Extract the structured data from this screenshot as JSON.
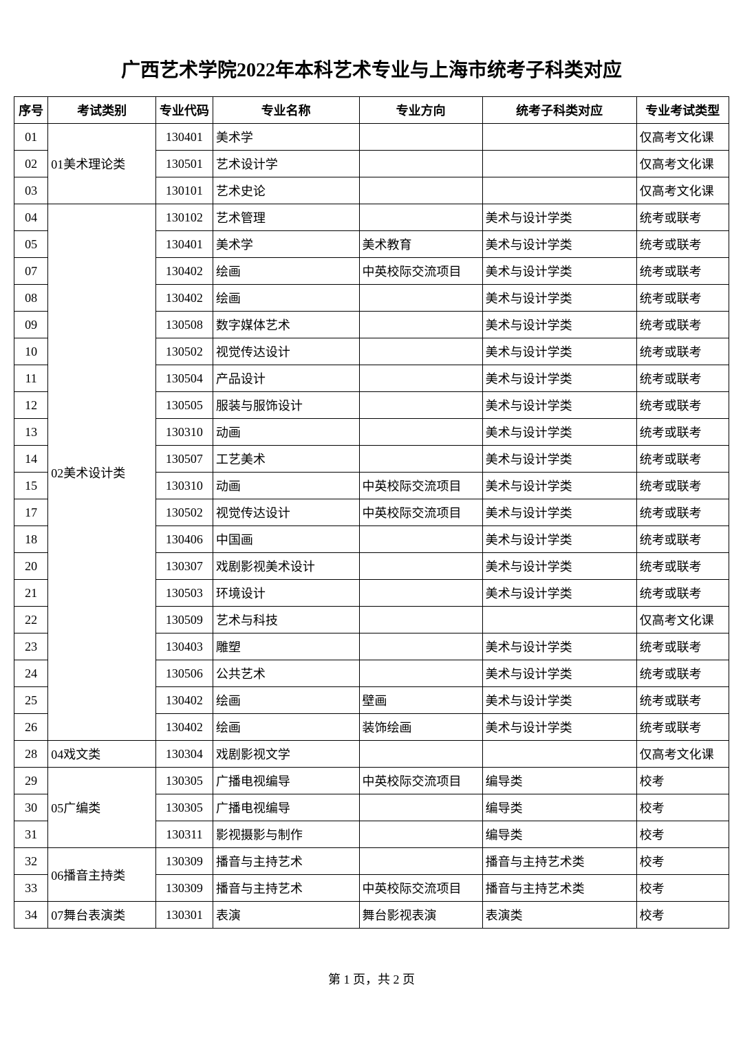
{
  "title": "广西艺术学院2022年本科艺术专业与上海市统考子科类对应",
  "footer": "第 1 页，共 2 页",
  "headers": {
    "seq": "序号",
    "category": "考试类别",
    "code": "专业代码",
    "name": "专业名称",
    "direction": "专业方向",
    "exam": "统考子科类对应",
    "type": "专业考试类型"
  },
  "groups": [
    {
      "category": "01美术理论类",
      "rows": [
        {
          "seq": "01",
          "code": "130401",
          "name": "美术学",
          "direction": "",
          "exam": "",
          "type": "仅高考文化课"
        },
        {
          "seq": "02",
          "code": "130501",
          "name": "艺术设计学",
          "direction": "",
          "exam": "",
          "type": "仅高考文化课"
        },
        {
          "seq": "03",
          "code": "130101",
          "name": "艺术史论",
          "direction": "",
          "exam": "",
          "type": "仅高考文化课"
        }
      ]
    },
    {
      "category": "02美术设计类",
      "rows": [
        {
          "seq": "04",
          "code": "130102",
          "name": "艺术管理",
          "direction": "",
          "exam": "美术与设计学类",
          "type": "统考或联考"
        },
        {
          "seq": "05",
          "code": "130401",
          "name": "美术学",
          "direction": "美术教育",
          "exam": "美术与设计学类",
          "type": "统考或联考"
        },
        {
          "seq": "07",
          "code": "130402",
          "name": "绘画",
          "direction": "中英校际交流项目",
          "exam": "美术与设计学类",
          "type": "统考或联考"
        },
        {
          "seq": "08",
          "code": "130402",
          "name": "绘画",
          "direction": "",
          "exam": "美术与设计学类",
          "type": "统考或联考"
        },
        {
          "seq": "09",
          "code": "130508",
          "name": "数字媒体艺术",
          "direction": "",
          "exam": "美术与设计学类",
          "type": "统考或联考"
        },
        {
          "seq": "10",
          "code": "130502",
          "name": "视觉传达设计",
          "direction": "",
          "exam": "美术与设计学类",
          "type": "统考或联考"
        },
        {
          "seq": "11",
          "code": "130504",
          "name": "产品设计",
          "direction": "",
          "exam": "美术与设计学类",
          "type": "统考或联考"
        },
        {
          "seq": "12",
          "code": "130505",
          "name": "服装与服饰设计",
          "direction": "",
          "exam": "美术与设计学类",
          "type": "统考或联考"
        },
        {
          "seq": "13",
          "code": "130310",
          "name": "动画",
          "direction": "",
          "exam": "美术与设计学类",
          "type": "统考或联考"
        },
        {
          "seq": "14",
          "code": "130507",
          "name": "工艺美术",
          "direction": "",
          "exam": "美术与设计学类",
          "type": "统考或联考"
        },
        {
          "seq": "15",
          "code": "130310",
          "name": "动画",
          "direction": "中英校际交流项目",
          "exam": "美术与设计学类",
          "type": "统考或联考"
        },
        {
          "seq": "17",
          "code": "130502",
          "name": "视觉传达设计",
          "direction": "中英校际交流项目",
          "exam": "美术与设计学类",
          "type": "统考或联考"
        },
        {
          "seq": "18",
          "code": "130406",
          "name": "中国画",
          "direction": "",
          "exam": "美术与设计学类",
          "type": "统考或联考"
        },
        {
          "seq": "20",
          "code": "130307",
          "name": "戏剧影视美术设计",
          "direction": "",
          "exam": "美术与设计学类",
          "type": "统考或联考"
        },
        {
          "seq": "21",
          "code": "130503",
          "name": "环境设计",
          "direction": "",
          "exam": "美术与设计学类",
          "type": "统考或联考"
        },
        {
          "seq": "22",
          "code": "130509",
          "name": "艺术与科技",
          "direction": "",
          "exam": "",
          "type": "仅高考文化课"
        },
        {
          "seq": "23",
          "code": "130403",
          "name": "雕塑",
          "direction": "",
          "exam": "美术与设计学类",
          "type": "统考或联考"
        },
        {
          "seq": "24",
          "code": "130506",
          "name": "公共艺术",
          "direction": "",
          "exam": "美术与设计学类",
          "type": "统考或联考"
        },
        {
          "seq": "25",
          "code": "130402",
          "name": "绘画",
          "direction": "壁画",
          "exam": "美术与设计学类",
          "type": "统考或联考"
        },
        {
          "seq": "26",
          "code": "130402",
          "name": "绘画",
          "direction": "装饰绘画",
          "exam": "美术与设计学类",
          "type": "统考或联考"
        }
      ]
    },
    {
      "category": "04戏文类",
      "rows": [
        {
          "seq": "28",
          "code": "130304",
          "name": "戏剧影视文学",
          "direction": "",
          "exam": "",
          "type": "仅高考文化课"
        }
      ]
    },
    {
      "category": "05广编类",
      "rows": [
        {
          "seq": "29",
          "code": "130305",
          "name": "广播电视编导",
          "direction": "中英校际交流项目",
          "exam": "编导类",
          "type": "校考"
        },
        {
          "seq": "30",
          "code": "130305",
          "name": "广播电视编导",
          "direction": "",
          "exam": "编导类",
          "type": "校考"
        },
        {
          "seq": "31",
          "code": "130311",
          "name": "影视摄影与制作",
          "direction": "",
          "exam": "编导类",
          "type": "校考"
        }
      ]
    },
    {
      "category": "06播音主持类",
      "rows": [
        {
          "seq": "32",
          "code": "130309",
          "name": "播音与主持艺术",
          "direction": "",
          "exam": "播音与主持艺术类",
          "type": "校考"
        },
        {
          "seq": "33",
          "code": "130309",
          "name": "播音与主持艺术",
          "direction": "中英校际交流项目",
          "exam": "播音与主持艺术类",
          "type": "校考"
        }
      ]
    },
    {
      "category": "07舞台表演类",
      "rows": [
        {
          "seq": "34",
          "code": "130301",
          "name": "表演",
          "direction": "舞台影视表演",
          "exam": "表演类",
          "type": "校考"
        }
      ]
    }
  ]
}
